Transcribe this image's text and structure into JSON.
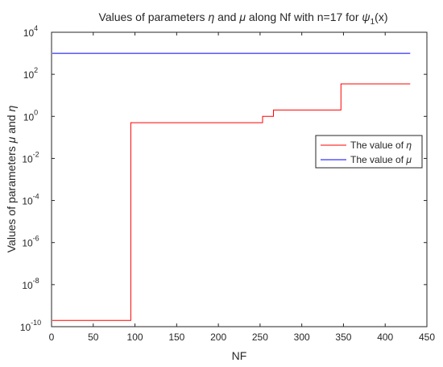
{
  "chart_data": {
    "type": "line",
    "title": {
      "pre": "Values of parameters ",
      "eta": "η",
      "mid1": " and ",
      "mu": "μ",
      "mid2": " along Nf with n=17 for  ",
      "psi": "ψ",
      "sub": "1",
      "post": "(x)"
    },
    "xlabel": "NF",
    "ylabel": {
      "pre": "Values of parameters  ",
      "mu": "μ",
      "mid": " and ",
      "eta": "η"
    },
    "xlim": [
      0,
      450
    ],
    "ylim": [
      1e-10,
      10000.0
    ],
    "yscale": "log",
    "grid": false,
    "legend_position": "right",
    "x_ticks": [
      "0",
      "50",
      "100",
      "150",
      "200",
      "250",
      "300",
      "350",
      "400",
      "450"
    ],
    "y_ticks": [
      {
        "base": "10",
        "exp": "4"
      },
      {
        "base": "10",
        "exp": "2"
      },
      {
        "base": "10",
        "exp": "0"
      },
      {
        "base": "10",
        "exp": "-2"
      },
      {
        "base": "10",
        "exp": "-4"
      },
      {
        "base": "10",
        "exp": "-6"
      },
      {
        "base": "10",
        "exp": "-8"
      },
      {
        "base": "10",
        "exp": "-10"
      }
    ],
    "series": [
      {
        "name": {
          "pre": "The value of ",
          "sym": "η"
        },
        "color": "#ff0000",
        "style": "step",
        "points": [
          [
            1,
            2e-10
          ],
          [
            95,
            2e-10
          ],
          [
            95,
            0.5
          ],
          [
            253,
            0.5
          ],
          [
            253,
            1.0
          ],
          [
            266,
            1.0
          ],
          [
            266,
            2.0
          ],
          [
            347,
            2.0
          ],
          [
            347,
            35
          ],
          [
            430,
            35
          ]
        ]
      },
      {
        "name": {
          "pre": "The value of ",
          "sym": "μ"
        },
        "color": "#0000ff",
        "style": "line",
        "points": [
          [
            1,
            1000
          ],
          [
            430,
            1000
          ]
        ]
      }
    ]
  }
}
